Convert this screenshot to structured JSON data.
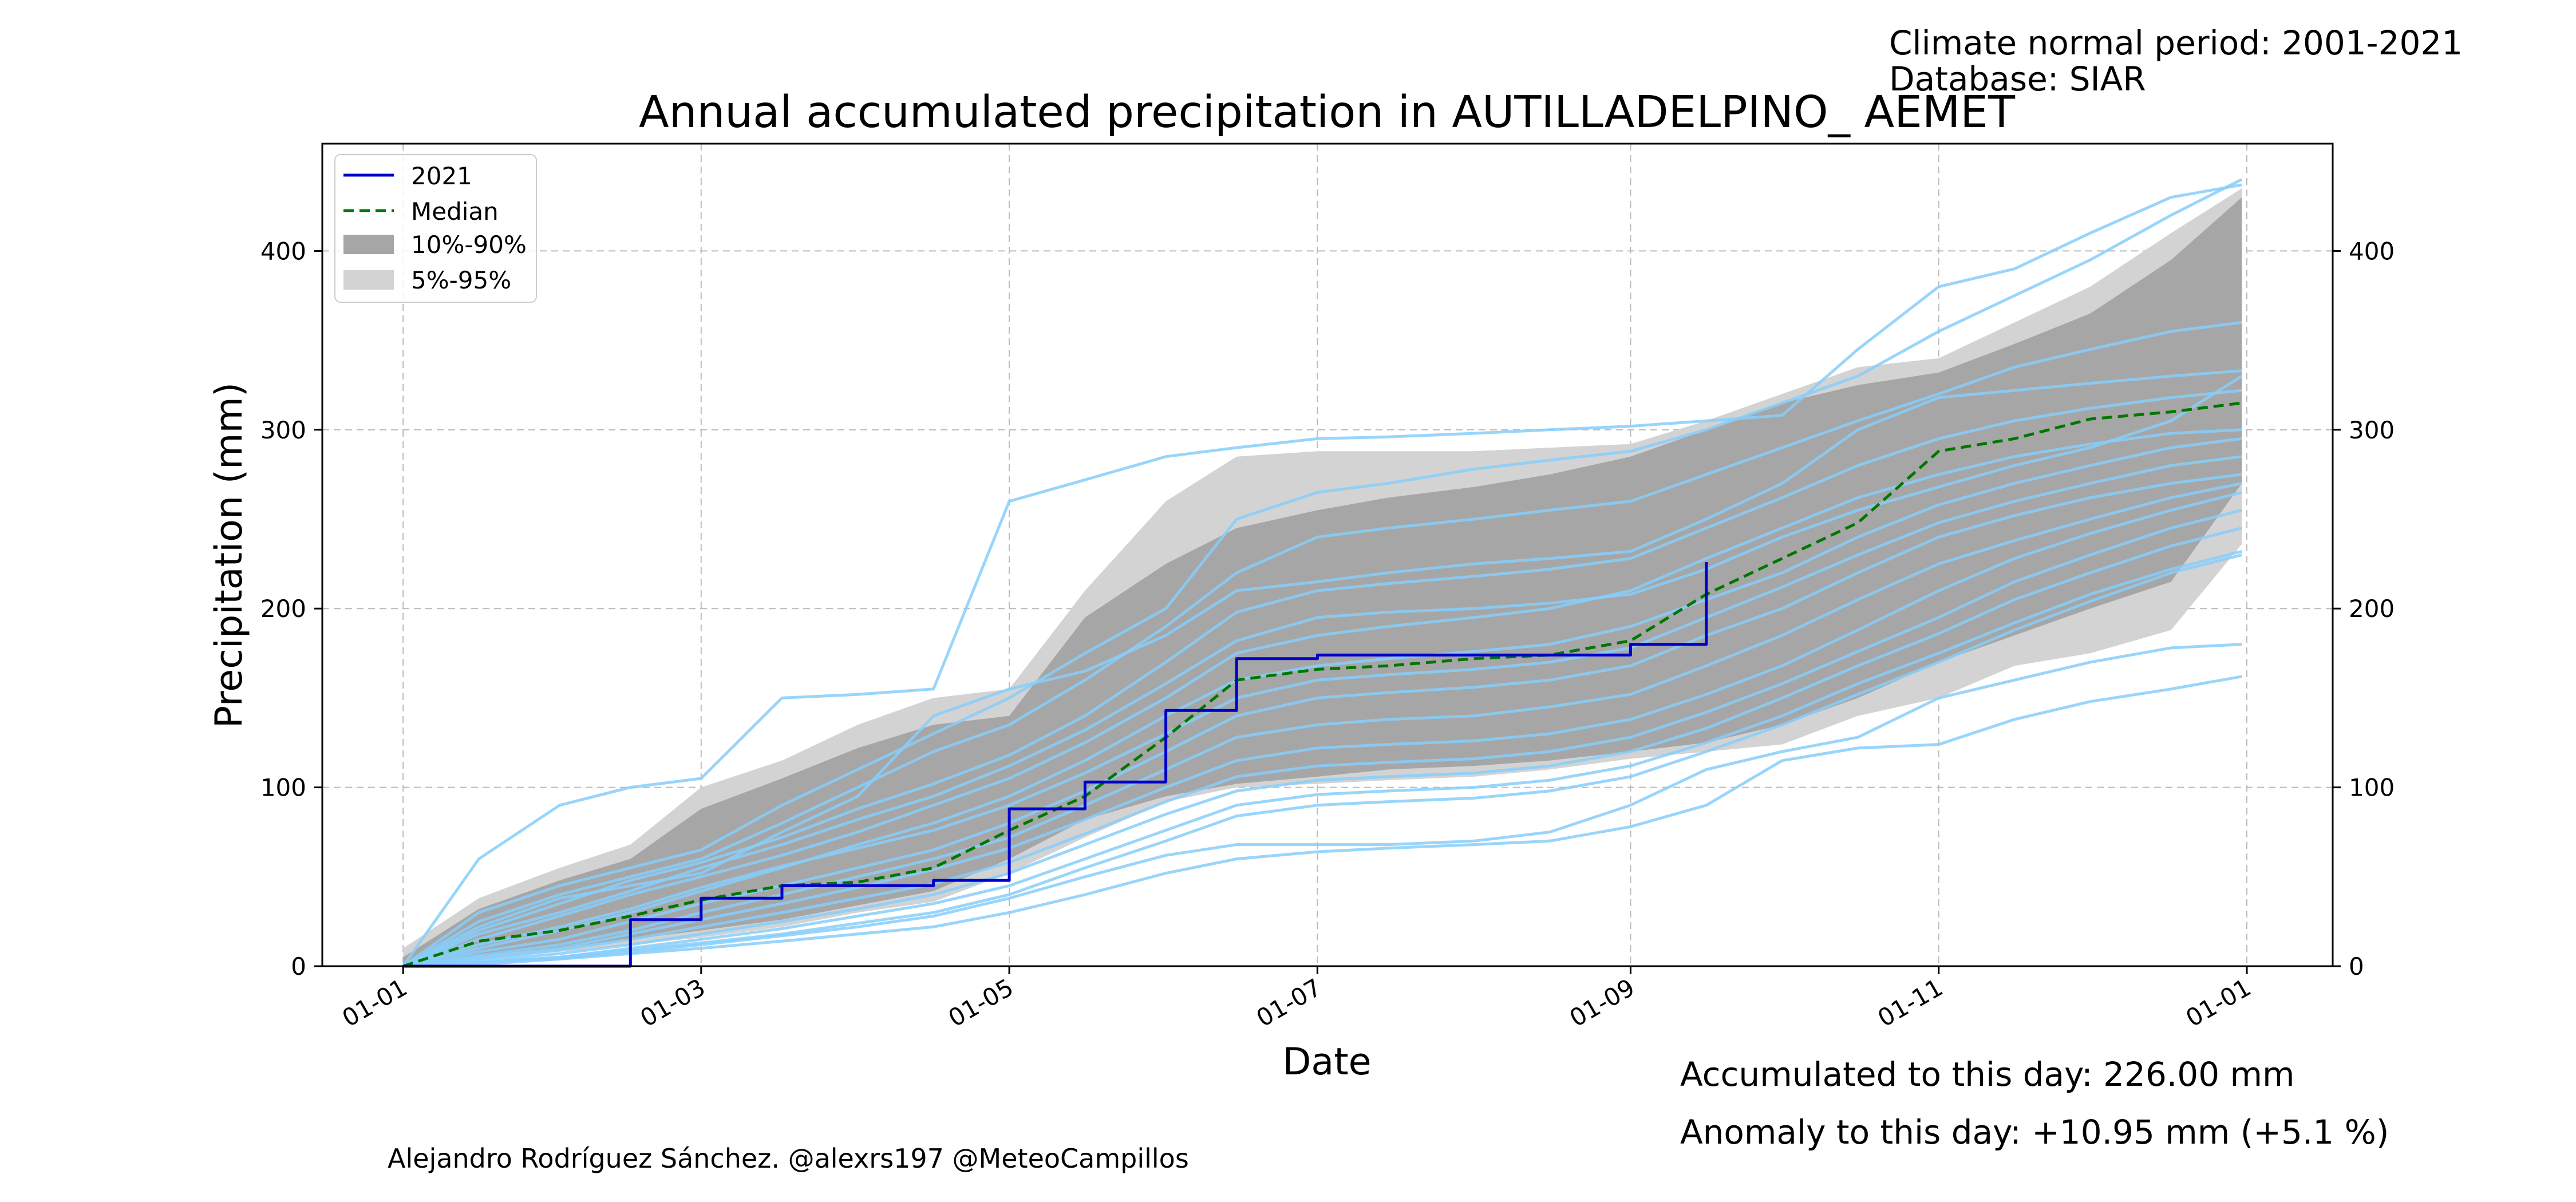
{
  "header": {
    "normal_period": "Climate normal period: 2001-2021",
    "database": "Database: SIAR"
  },
  "footer": {
    "accumulated": "Accumulated to this day: 226.00 mm",
    "anomaly": "Anomaly to this day: +10.95 mm (+5.1 %)",
    "credit": "Alejandro Rodríguez Sánchez. @alexrs197 @MeteoCampillos"
  },
  "colors": {
    "current_year": "#0000cc",
    "median": "#007700",
    "band_10_90": "#a6a6a6",
    "band_5_95": "#d3d3d3",
    "historical_years": "#87cefa",
    "anomaly_text": "#0000ff"
  },
  "chart_data": {
    "type": "line",
    "title": "Annual accumulated precipitation in AUTILLADELPINO_ AEMET",
    "xlabel": "Date",
    "ylabel": "Precipitation (mm)",
    "ylim": [
      0,
      460
    ],
    "xlim_day_of_year": [
      -16,
      382
    ],
    "grid": true,
    "legend_position": "top-left",
    "x_ticks": [
      {
        "label": "01-01",
        "day": 0
      },
      {
        "label": "01-03",
        "day": 59
      },
      {
        "label": "01-05",
        "day": 120
      },
      {
        "label": "01-07",
        "day": 181
      },
      {
        "label": "01-09",
        "day": 243
      },
      {
        "label": "01-11",
        "day": 304
      },
      {
        "label": "01-01",
        "day": 365
      }
    ],
    "y_ticks": [
      0,
      100,
      200,
      300,
      400
    ],
    "legend": [
      "2021",
      "Median",
      "10%-90%",
      "5%-95%"
    ],
    "x_day_of_year": [
      0,
      15,
      31,
      45,
      59,
      75,
      90,
      105,
      120,
      135,
      151,
      165,
      181,
      195,
      212,
      227,
      243,
      258,
      273,
      288,
      304,
      319,
      334,
      350,
      364
    ],
    "series": [
      {
        "name": "2021",
        "values": [
          0,
          0,
          0,
          26,
          38,
          45,
          45,
          48,
          88,
          103,
          143,
          172,
          174,
          174,
          174,
          174,
          180,
          226,
          null,
          null,
          null,
          null,
          null,
          null,
          null
        ]
      },
      {
        "name": "Median",
        "values": [
          0,
          14,
          20,
          28,
          37,
          45,
          47,
          55,
          76,
          95,
          128,
          160,
          166,
          168,
          172,
          174,
          182,
          208,
          228,
          248,
          288,
          295,
          306,
          310,
          315
        ]
      }
    ],
    "bands": [
      {
        "name": "5%-95%",
        "lower": [
          0,
          4,
          8,
          12,
          16,
          22,
          30,
          36,
          52,
          72,
          92,
          100,
          102,
          104,
          106,
          110,
          116,
          120,
          124,
          140,
          150,
          168,
          175,
          188,
          236
        ],
        "upper": [
          10,
          38,
          55,
          68,
          100,
          115,
          135,
          150,
          155,
          210,
          260,
          285,
          288,
          288,
          288,
          290,
          292,
          305,
          320,
          335,
          340,
          360,
          380,
          410,
          435
        ]
      },
      {
        "name": "10%-90%",
        "lower": [
          0,
          6,
          10,
          15,
          20,
          26,
          34,
          42,
          60,
          82,
          95,
          102,
          106,
          110,
          112,
          115,
          120,
          125,
          135,
          150,
          170,
          185,
          200,
          215,
          270
        ],
        "upper": [
          5,
          32,
          48,
          60,
          88,
          105,
          122,
          135,
          140,
          195,
          225,
          245,
          255,
          262,
          268,
          275,
          285,
          300,
          315,
          325,
          332,
          348,
          365,
          395,
          430
        ]
      }
    ],
    "historical_years": [
      {
        "values": [
          0,
          60,
          90,
          100,
          105,
          150,
          152,
          155,
          260,
          272,
          285,
          290,
          295,
          296,
          298,
          300,
          302,
          305,
          308,
          345,
          380,
          390,
          410,
          430,
          437
        ]
      },
      {
        "values": [
          0,
          30,
          45,
          55,
          65,
          90,
          110,
          130,
          150,
          175,
          200,
          250,
          265,
          270,
          278,
          283,
          288,
          300,
          315,
          330,
          355,
          375,
          395,
          420,
          440
        ]
      },
      {
        "values": [
          0,
          25,
          40,
          50,
          60,
          80,
          100,
          120,
          135,
          160,
          190,
          220,
          240,
          245,
          250,
          255,
          260,
          275,
          290,
          305,
          320,
          335,
          345,
          355,
          360
        ]
      },
      {
        "values": [
          0,
          20,
          35,
          48,
          58,
          72,
          88,
          102,
          118,
          140,
          170,
          198,
          210,
          214,
          218,
          222,
          228,
          245,
          262,
          280,
          295,
          305,
          312,
          318,
          322
        ]
      },
      {
        "values": [
          0,
          15,
          28,
          40,
          50,
          62,
          75,
          90,
          105,
          125,
          150,
          175,
          185,
          190,
          195,
          200,
          210,
          228,
          245,
          262,
          275,
          285,
          292,
          298,
          300
        ]
      },
      {
        "values": [
          0,
          18,
          30,
          42,
          55,
          68,
          82,
          95,
          112,
          132,
          158,
          182,
          195,
          198,
          200,
          203,
          208,
          222,
          240,
          255,
          268,
          280,
          290,
          305,
          330
        ]
      },
      {
        "values": [
          0,
          10,
          20,
          30,
          42,
          55,
          68,
          80,
          95,
          115,
          140,
          160,
          168,
          172,
          176,
          180,
          190,
          205,
          220,
          240,
          258,
          270,
          280,
          290,
          295
        ]
      },
      {
        "values": [
          0,
          12,
          22,
          32,
          44,
          56,
          66,
          76,
          90,
          108,
          130,
          150,
          160,
          163,
          166,
          170,
          178,
          195,
          212,
          230,
          248,
          260,
          270,
          280,
          285
        ]
      },
      {
        "values": [
          0,
          8,
          15,
          25,
          35,
          45,
          55,
          65,
          80,
          98,
          120,
          140,
          150,
          153,
          156,
          160,
          168,
          185,
          200,
          220,
          240,
          252,
          262,
          270,
          275
        ]
      },
      {
        "values": [
          0,
          6,
          12,
          20,
          30,
          40,
          50,
          60,
          72,
          90,
          110,
          128,
          135,
          138,
          140,
          145,
          152,
          168,
          185,
          205,
          225,
          238,
          250,
          262,
          270
        ]
      },
      {
        "values": [
          0,
          5,
          10,
          18,
          26,
          35,
          44,
          54,
          66,
          82,
          100,
          115,
          122,
          124,
          126,
          130,
          138,
          152,
          168,
          188,
          210,
          228,
          242,
          255,
          265
        ]
      },
      {
        "values": [
          0,
          4,
          9,
          15,
          22,
          30,
          38,
          46,
          58,
          74,
          92,
          106,
          112,
          114,
          116,
          120,
          128,
          142,
          158,
          176,
          195,
          215,
          230,
          245,
          255
        ]
      },
      {
        "values": [
          0,
          3,
          7,
          12,
          18,
          25,
          32,
          40,
          52,
          68,
          85,
          98,
          104,
          106,
          108,
          112,
          120,
          133,
          150,
          168,
          186,
          205,
          220,
          235,
          245
        ]
      },
      {
        "values": [
          0,
          2,
          5,
          10,
          15,
          21,
          28,
          35,
          45,
          60,
          76,
          90,
          96,
          98,
          100,
          104,
          112,
          125,
          140,
          158,
          175,
          192,
          208,
          222,
          232
        ]
      },
      {
        "values": [
          0,
          2,
          5,
          9,
          13,
          18,
          24,
          30,
          40,
          55,
          70,
          84,
          90,
          92,
          94,
          98,
          106,
          120,
          135,
          152,
          170,
          188,
          204,
          220,
          230
        ]
      },
      {
        "values": [
          0,
          1,
          4,
          8,
          12,
          17,
          22,
          28,
          38,
          50,
          62,
          68,
          68,
          68,
          70,
          75,
          90,
          110,
          120,
          128,
          150,
          160,
          170,
          178,
          180
        ]
      },
      {
        "values": [
          0,
          2,
          4,
          7,
          10,
          14,
          18,
          22,
          30,
          40,
          52,
          60,
          64,
          66,
          68,
          70,
          78,
          90,
          115,
          122,
          124,
          138,
          148,
          155,
          162
        ]
      },
      {
        "values": [
          0,
          22,
          38,
          45,
          52,
          75,
          95,
          140,
          155,
          165,
          185,
          210,
          215,
          220,
          225,
          228,
          232,
          250,
          270,
          300,
          318,
          322,
          326,
          330,
          333
        ]
      }
    ]
  }
}
